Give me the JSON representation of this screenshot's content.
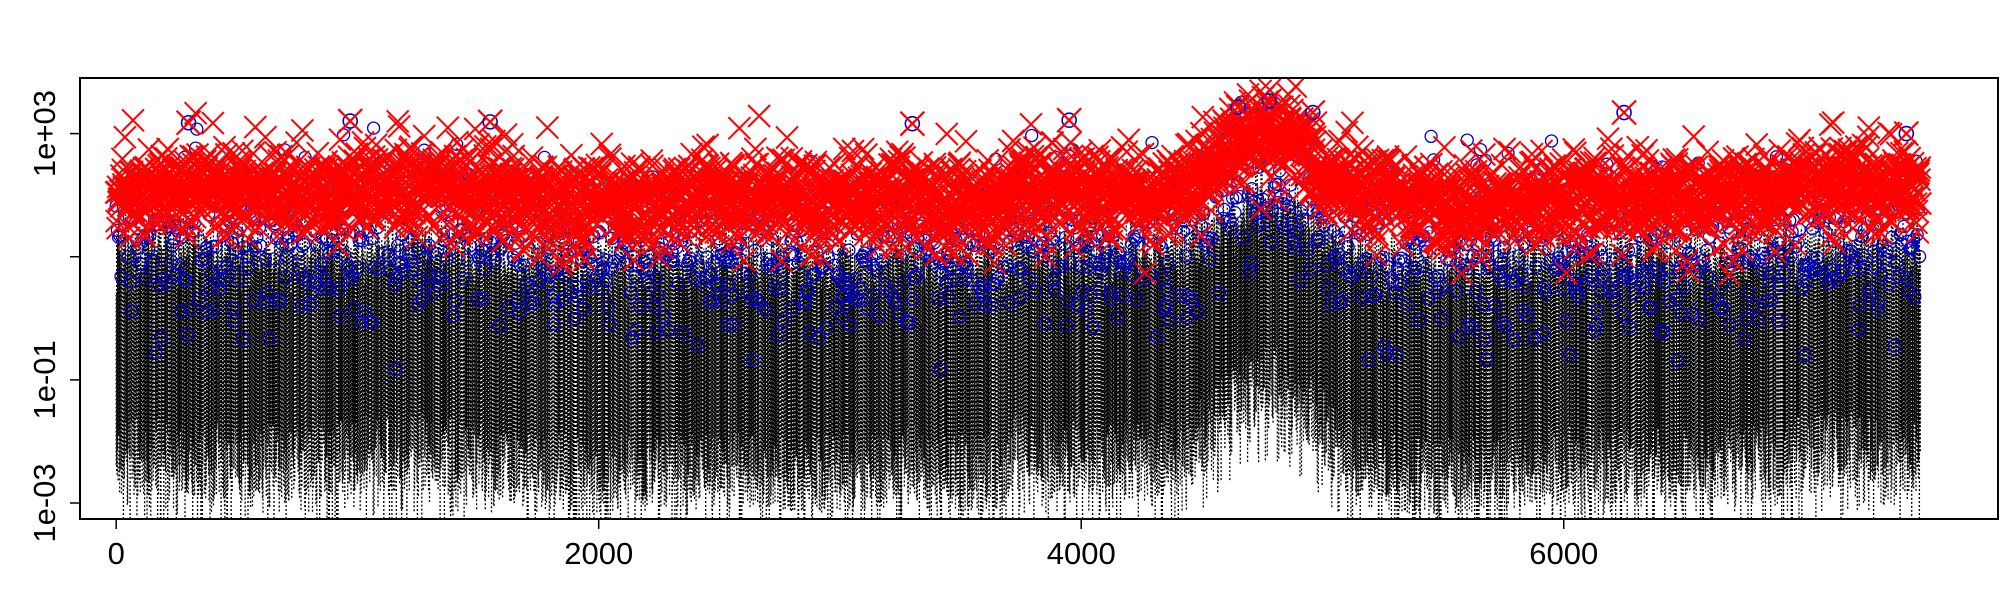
{
  "chart_data": {
    "type": "scatter",
    "title": "",
    "xlabel": "",
    "ylabel": "",
    "y_scale": "log",
    "grid": false,
    "xlim": [
      -150,
      7800
    ],
    "ylim": [
      0.00055,
      8000
    ],
    "x_ticks": [
      0,
      2000,
      4000,
      6000
    ],
    "x_tick_labels": [
      "0",
      "2000",
      "4000",
      "6000"
    ],
    "y_major_ticks": [
      0.001,
      0.1,
      1000
    ],
    "y_tick_labels": [
      "1e-03",
      "1e-01",
      "1e+03"
    ],
    "y_minor_ticks": [
      10
    ],
    "n_points": 7500,
    "series": [
      {
        "style": "dotted vertical lines from each observation to the floor",
        "color": "#000000",
        "typical_range": [
          0.001,
          50
        ]
      },
      {
        "style": "open circles",
        "color": "#0000cc",
        "typical_range": [
          0.01,
          2000
        ]
      },
      {
        "style": "crosses",
        "color": "#ff0000",
        "typical_range": [
          3,
          2000
        ]
      }
    ],
    "highlighted_points": [
      {
        "x": 300,
        "y": 1500
      },
      {
        "x": 970,
        "y": 1600
      },
      {
        "x": 1550,
        "y": 1550
      },
      {
        "x": 3300,
        "y": 1450
      },
      {
        "x": 3950,
        "y": 1650
      },
      {
        "x": 4650,
        "y": 2700
      },
      {
        "x": 4780,
        "y": 3400
      },
      {
        "x": 4960,
        "y": 2200
      },
      {
        "x": 6250,
        "y": 2200
      },
      {
        "x": 7420,
        "y": 1000
      }
    ],
    "envelope_notes": "Values are elevated between x≈4400 and x≈5100, peaking near x≈4780."
  }
}
